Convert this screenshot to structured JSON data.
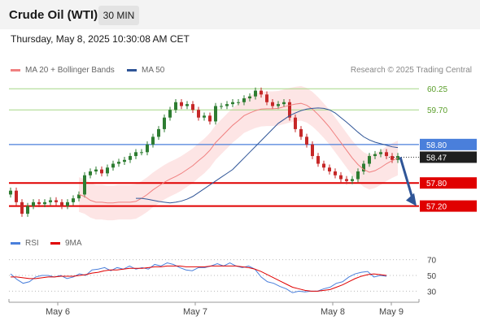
{
  "header": {
    "title": "Crude Oil (WTI)",
    "timeframe": "30 MIN"
  },
  "datetime": "Thursday, May 8, 2025 10:30:08 AM CET",
  "legend": {
    "ma20_label": "MA 20 + Bollinger Bands",
    "ma50_label": "MA 50",
    "credit": "Research © 2025 Trading Central",
    "rsi_label": "RSI",
    "rsi_ma_label": "9MA"
  },
  "colors": {
    "ma20": "#f08080",
    "ma50": "#2f5597",
    "bollinger_fill": "#fde0e0",
    "bull": "#2e7d32",
    "bear": "#c62828",
    "support": "#e00000",
    "resistance_green": "#a6d785",
    "pivot_blue": "#4a7fdb",
    "rsi": "#4a7fdb",
    "rsi_ma": "#e00000"
  },
  "chart_data": [
    {
      "type": "line",
      "subtype": "candlestick",
      "ylim": [
        56.6,
        60.55
      ],
      "x_labels": [
        "May 6",
        "May 7",
        "May 8",
        "May 9"
      ],
      "levels": [
        {
          "value": 60.25,
          "label": "60.25",
          "kind": "resistance"
        },
        {
          "value": 59.7,
          "label": "59.70",
          "kind": "resistance"
        },
        {
          "value": 58.8,
          "label": "58.80",
          "kind": "pivot"
        },
        {
          "value": 58.47,
          "label": "58.47",
          "kind": "last"
        },
        {
          "value": 57.8,
          "label": "57.80",
          "kind": "support"
        },
        {
          "value": 57.2,
          "label": "57.20",
          "kind": "support"
        }
      ],
      "close": [
        57.6,
        57.3,
        57.0,
        57.2,
        57.3,
        57.25,
        57.3,
        57.35,
        57.3,
        57.2,
        57.3,
        57.4,
        57.5,
        58.0,
        58.1,
        58.15,
        58.05,
        58.2,
        58.3,
        58.35,
        58.4,
        58.5,
        58.6,
        58.6,
        58.8,
        59.0,
        59.2,
        59.5,
        59.7,
        59.9,
        59.8,
        59.85,
        59.7,
        59.5,
        59.55,
        59.4,
        59.8,
        59.8,
        59.85,
        59.9,
        59.9,
        60.0,
        60.05,
        60.2,
        60.1,
        59.9,
        59.8,
        59.85,
        59.9,
        59.5,
        59.2,
        59.0,
        58.8,
        58.5,
        58.3,
        58.2,
        58.1,
        58.0,
        57.9,
        57.85,
        57.9,
        58.1,
        58.3,
        58.5,
        58.55,
        58.6,
        58.5,
        58.4,
        58.5
      ],
      "ma20": [
        57.5,
        57.45,
        57.35,
        57.3,
        57.3,
        57.28,
        57.28,
        57.3,
        57.3,
        57.3,
        57.32,
        57.4,
        57.5,
        57.62,
        57.72,
        57.82,
        57.9,
        57.97,
        58.05,
        58.15,
        58.25,
        58.38,
        58.5,
        58.65,
        58.85,
        59.0,
        59.15,
        59.3,
        59.42,
        59.55,
        59.62,
        59.68,
        59.72,
        59.73,
        59.73,
        59.74,
        59.78,
        59.82,
        59.85,
        59.87,
        59.82,
        59.72,
        59.58,
        59.42,
        59.25,
        59.05,
        58.85,
        58.65,
        58.45,
        58.28,
        58.15,
        58.08,
        58.12,
        58.2,
        58.3,
        58.38,
        58.45
      ],
      "ma50": [
        57.4,
        57.4,
        57.38,
        57.35,
        57.32,
        57.3,
        57.28,
        57.3,
        57.33,
        57.38,
        57.45,
        57.55,
        57.65,
        57.75,
        57.85,
        57.95,
        58.05,
        58.15,
        58.3,
        58.45,
        58.6,
        58.75,
        58.9,
        59.05,
        59.2,
        59.35,
        59.45,
        59.55,
        59.62,
        59.68,
        59.72,
        59.74,
        59.75,
        59.74,
        59.7,
        59.62,
        59.5,
        59.38,
        59.25,
        59.12,
        59.0,
        58.92,
        58.86,
        58.82,
        58.78,
        58.74,
        58.72
      ],
      "projection": {
        "from": 58.47,
        "to": 57.2
      }
    },
    {
      "type": "line",
      "title": "RSI",
      "ylim": [
        20,
        80
      ],
      "y_ticks": [
        70,
        50,
        30
      ],
      "rsi": [
        52,
        45,
        40,
        42,
        48,
        50,
        50,
        48,
        50,
        46,
        48,
        52,
        50,
        57,
        58,
        60,
        56,
        60,
        58,
        62,
        58,
        60,
        58,
        64,
        62,
        66,
        64,
        60,
        57,
        56,
        60,
        60,
        62,
        65,
        62,
        66,
        62,
        60,
        62,
        58,
        48,
        42,
        40,
        36,
        33,
        28,
        30,
        29,
        30,
        30,
        33,
        35,
        40,
        42,
        48,
        52,
        54,
        55,
        48,
        50,
        49
      ],
      "rsi_ma": [
        48,
        48,
        47,
        46,
        46,
        47,
        48,
        48,
        49,
        49,
        49,
        50,
        51,
        53,
        54,
        56,
        57,
        57,
        58,
        59,
        59,
        59,
        60,
        61,
        61,
        62,
        62,
        62,
        61,
        61,
        61,
        61,
        62,
        62,
        62,
        62,
        62,
        61,
        60,
        58,
        55,
        51,
        47,
        43,
        39,
        35,
        33,
        31,
        30,
        30,
        31,
        32,
        35,
        38,
        42,
        46,
        49,
        51,
        52,
        51,
        50
      ]
    }
  ]
}
